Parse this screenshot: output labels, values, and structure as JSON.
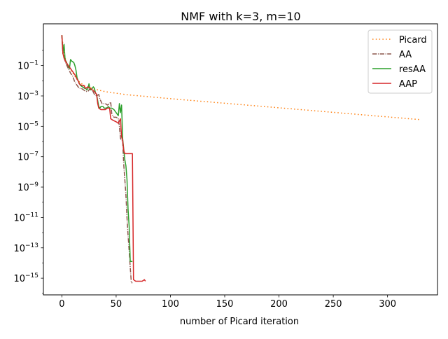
{
  "chart_data": {
    "type": "line",
    "title": "NMF with k=3, m=10",
    "xlabel": "number of Picard iteration",
    "ylabel": "",
    "xlim": [
      -17,
      346
    ],
    "ylim_log10": [
      -16.1,
      1.75
    ],
    "yscale": "log",
    "grid": false,
    "legend_position": "top-right",
    "xticks": [
      0,
      50,
      100,
      150,
      200,
      250,
      300
    ],
    "yticks": [
      {
        "exp": -1,
        "label": "10",
        "sup": "−1"
      },
      {
        "exp": -3,
        "label": "10",
        "sup": "−3"
      },
      {
        "exp": -5,
        "label": "10",
        "sup": "−5"
      },
      {
        "exp": -7,
        "label": "10",
        "sup": "−7"
      },
      {
        "exp": -9,
        "label": "10",
        "sup": "−9"
      },
      {
        "exp": -11,
        "label": "10",
        "sup": "−11"
      },
      {
        "exp": -13,
        "label": "10",
        "sup": "−13"
      },
      {
        "exp": -15,
        "label": "10",
        "sup": "−15"
      }
    ],
    "series": [
      {
        "name": "Picard",
        "color": "#ff7f0e",
        "dash": "dotted",
        "points": [
          [
            0,
            1.0
          ],
          [
            2,
            -0.3
          ],
          [
            5,
            -0.9
          ],
          [
            10,
            -1.5
          ],
          [
            15,
            -2.0
          ],
          [
            20,
            -2.3
          ],
          [
            30,
            -2.55
          ],
          [
            40,
            -2.72
          ],
          [
            60,
            -2.92
          ],
          [
            100,
            -3.18
          ],
          [
            150,
            -3.48
          ],
          [
            200,
            -3.78
          ],
          [
            250,
            -4.08
          ],
          [
            300,
            -4.38
          ],
          [
            330,
            -4.56
          ]
        ]
      },
      {
        "name": "AA",
        "color": "#8c564b",
        "dash": "dashdot",
        "points": [
          [
            0,
            1.0
          ],
          [
            1,
            -0.2
          ],
          [
            2,
            -0.5
          ],
          [
            4,
            -0.9
          ],
          [
            6,
            -1.2
          ],
          [
            8,
            -1.5
          ],
          [
            10,
            -1.7
          ],
          [
            12,
            -2.1
          ],
          [
            14,
            -2.3
          ],
          [
            16,
            -2.5
          ],
          [
            18,
            -2.5
          ],
          [
            20,
            -2.6
          ],
          [
            22,
            -2.7
          ],
          [
            24,
            -2.7
          ],
          [
            26,
            -2.5
          ],
          [
            28,
            -2.6
          ],
          [
            30,
            -2.9
          ],
          [
            32,
            -3.0
          ],
          [
            34,
            -2.9
          ],
          [
            35,
            -3.2
          ],
          [
            37,
            -3.5
          ],
          [
            40,
            -3.5
          ],
          [
            42,
            -3.6
          ],
          [
            44,
            -3.5
          ],
          [
            45,
            -3.4
          ],
          [
            46,
            -4.2
          ],
          [
            48,
            -4.4
          ],
          [
            50,
            -4.4
          ],
          [
            52,
            -4.5
          ],
          [
            53,
            -5.0
          ],
          [
            54,
            -5.8
          ],
          [
            55,
            -5.9
          ],
          [
            56,
            -6.0
          ],
          [
            57,
            -7.5
          ],
          [
            58,
            -8.5
          ],
          [
            59,
            -9.5
          ],
          [
            60,
            -11.0
          ],
          [
            61,
            -12.2
          ],
          [
            62,
            -13.2
          ],
          [
            63,
            -14.3
          ],
          [
            64,
            -15.3
          ],
          [
            65,
            -15.3
          ]
        ]
      },
      {
        "name": "resAA",
        "color": "#2ca02c",
        "dash": "solid",
        "points": [
          [
            0,
            1.0
          ],
          [
            1,
            -0.2
          ],
          [
            2,
            0.4
          ],
          [
            3,
            -0.6
          ],
          [
            5,
            -0.9
          ],
          [
            7,
            -1.2
          ],
          [
            8,
            -0.6
          ],
          [
            9,
            -0.7
          ],
          [
            11,
            -0.8
          ],
          [
            12,
            -1.0
          ],
          [
            13,
            -1.3
          ],
          [
            14,
            -1.8
          ],
          [
            15,
            -2.0
          ],
          [
            17,
            -2.3
          ],
          [
            19,
            -2.4
          ],
          [
            21,
            -2.5
          ],
          [
            22,
            -2.5
          ],
          [
            23,
            -2.6
          ],
          [
            24,
            -2.5
          ],
          [
            25,
            -2.2
          ],
          [
            26,
            -2.6
          ],
          [
            27,
            -2.6
          ],
          [
            28,
            -2.5
          ],
          [
            29,
            -2.4
          ],
          [
            30,
            -2.5
          ],
          [
            31,
            -2.8
          ],
          [
            32,
            -2.9
          ],
          [
            33,
            -3.3
          ],
          [
            34,
            -3.7
          ],
          [
            35,
            -3.8
          ],
          [
            36,
            -3.7
          ],
          [
            38,
            -3.7
          ],
          [
            39,
            -3.8
          ],
          [
            41,
            -3.8
          ],
          [
            43,
            -3.7
          ],
          [
            44,
            -3.8
          ],
          [
            46,
            -3.8
          ],
          [
            48,
            -3.9
          ],
          [
            50,
            -4.1
          ],
          [
            51,
            -4.2
          ],
          [
            52,
            -4.3
          ],
          [
            53,
            -3.5
          ],
          [
            54,
            -4.1
          ],
          [
            55,
            -3.6
          ],
          [
            56,
            -5.8
          ],
          [
            57,
            -6.5
          ],
          [
            58,
            -7.2
          ],
          [
            59,
            -7.6
          ],
          [
            60,
            -8.5
          ],
          [
            61,
            -10.5
          ],
          [
            62,
            -11.6
          ],
          [
            63,
            -13.9
          ],
          [
            64,
            -13.9
          ],
          [
            65,
            -13.9
          ]
        ]
      },
      {
        "name": "AAP",
        "color": "#d62728",
        "dash": "solid",
        "points": [
          [
            0,
            1.0
          ],
          [
            1,
            -0.2
          ],
          [
            2,
            -0.5
          ],
          [
            4,
            -0.8
          ],
          [
            6,
            -1.0
          ],
          [
            8,
            -1.2
          ],
          [
            10,
            -1.4
          ],
          [
            12,
            -1.6
          ],
          [
            14,
            -1.9
          ],
          [
            15,
            -2.0
          ],
          [
            16,
            -2.2
          ],
          [
            18,
            -2.3
          ],
          [
            20,
            -2.3
          ],
          [
            22,
            -2.5
          ],
          [
            24,
            -2.4
          ],
          [
            26,
            -2.5
          ],
          [
            28,
            -2.6
          ],
          [
            30,
            -2.7
          ],
          [
            32,
            -2.9
          ],
          [
            33,
            -3.5
          ],
          [
            34,
            -3.8
          ],
          [
            36,
            -3.9
          ],
          [
            40,
            -3.9
          ],
          [
            42,
            -3.8
          ],
          [
            44,
            -3.8
          ],
          [
            45,
            -4.5
          ],
          [
            47,
            -4.6
          ],
          [
            50,
            -4.7
          ],
          [
            52,
            -4.8
          ],
          [
            54,
            -4.5
          ],
          [
            55,
            -5.7
          ],
          [
            56,
            -5.9
          ],
          [
            57,
            -6.6
          ],
          [
            58,
            -6.8
          ],
          [
            60,
            -6.8
          ],
          [
            63,
            -6.8
          ],
          [
            65,
            -6.8
          ],
          [
            66,
            -15.1
          ],
          [
            68,
            -15.2
          ],
          [
            70,
            -15.2
          ],
          [
            72,
            -15.2
          ],
          [
            74,
            -15.2
          ],
          [
            76,
            -15.1
          ],
          [
            77,
            -15.2
          ]
        ]
      }
    ]
  }
}
